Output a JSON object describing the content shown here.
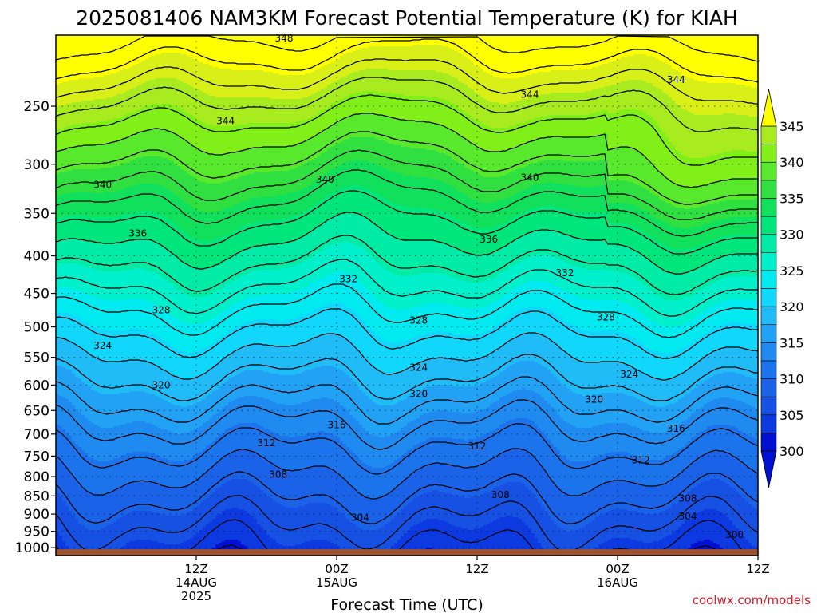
{
  "chart_data": {
    "type": "area",
    "title": "2025081406 NAM3KM Forecast Potential Temperature (K) for KIAH",
    "xlabel": "Forecast Time (UTC)",
    "ylabel": "",
    "credit": "coolwx.com/models",
    "x_range_hours": [
      -6,
      54
    ],
    "x_ticks": [
      {
        "hour": 6,
        "lines": [
          "12Z",
          "14AUG",
          "2025"
        ]
      },
      {
        "hour": 18,
        "lines": [
          "00Z",
          "15AUG"
        ]
      },
      {
        "hour": 30,
        "lines": [
          "12Z"
        ]
      },
      {
        "hour": 42,
        "lines": [
          "00Z",
          "16AUG"
        ]
      },
      {
        "hour": 54,
        "lines": [
          "12Z"
        ]
      }
    ],
    "y_axis": {
      "scale": "log-pressure",
      "range_hPa": [
        1025,
        200
      ],
      "ticks": [
        250,
        300,
        350,
        400,
        450,
        500,
        550,
        600,
        650,
        700,
        750,
        800,
        850,
        900,
        950,
        1000
      ]
    },
    "surface_pressure_hPa": 1005,
    "colorbar": {
      "ticks": [
        300,
        305,
        310,
        315,
        320,
        325,
        330,
        335,
        340,
        345
      ],
      "levels": [
        300,
        302.5,
        305,
        307.5,
        310,
        312.5,
        315,
        317.5,
        320,
        322.5,
        325,
        327.5,
        330,
        332.5,
        335,
        337.5,
        340,
        342.5,
        345,
        347.5
      ],
      "colors": [
        "#0010d0",
        "#0c3ae0",
        "#1651e4",
        "#1a62e8",
        "#1c74ec",
        "#1f8af0",
        "#22a2f4",
        "#1fbcf8",
        "#12d7fc",
        "#00eaf0",
        "#00f0cc",
        "#00eca6",
        "#00e67c",
        "#10e05c",
        "#30e040",
        "#58e82c",
        "#80f018",
        "#a8ec20",
        "#d8f018",
        "#ffff00"
      ]
    },
    "contour_interval_K": 2,
    "contour_labels": [
      {
        "value": 348,
        "hour": 13.5,
        "p": 202
      },
      {
        "value": 344,
        "hour": 8.5,
        "p": 262
      },
      {
        "value": 344,
        "hour": 34.5,
        "p": 241
      },
      {
        "value": 344,
        "hour": 47,
        "p": 230
      },
      {
        "value": 340,
        "hour": -2,
        "p": 320
      },
      {
        "value": 340,
        "hour": 17,
        "p": 315
      },
      {
        "value": 340,
        "hour": 34.5,
        "p": 313
      },
      {
        "value": 336,
        "hour": 1,
        "p": 373
      },
      {
        "value": 336,
        "hour": 31,
        "p": 380
      },
      {
        "value": 332,
        "hour": 19,
        "p": 430
      },
      {
        "value": 332,
        "hour": 37.5,
        "p": 422
      },
      {
        "value": 328,
        "hour": 3,
        "p": 474
      },
      {
        "value": 328,
        "hour": 25,
        "p": 490
      },
      {
        "value": 328,
        "hour": 41,
        "p": 485
      },
      {
        "value": 324,
        "hour": -2,
        "p": 530
      },
      {
        "value": 324,
        "hour": 25,
        "p": 568
      },
      {
        "value": 324,
        "hour": 43,
        "p": 580
      },
      {
        "value": 320,
        "hour": 3,
        "p": 600
      },
      {
        "value": 320,
        "hour": 25,
        "p": 617
      },
      {
        "value": 320,
        "hour": 40,
        "p": 628
      },
      {
        "value": 316,
        "hour": 18,
        "p": 680
      },
      {
        "value": 316,
        "hour": 47,
        "p": 688
      },
      {
        "value": 312,
        "hour": 12,
        "p": 720
      },
      {
        "value": 312,
        "hour": 30,
        "p": 727
      },
      {
        "value": 312,
        "hour": 44,
        "p": 760
      },
      {
        "value": 308,
        "hour": 13,
        "p": 795
      },
      {
        "value": 308,
        "hour": 32,
        "p": 847
      },
      {
        "value": 308,
        "hour": 48,
        "p": 857
      },
      {
        "value": 304,
        "hour": 20,
        "p": 910
      },
      {
        "value": 304,
        "hour": 48,
        "p": 906
      },
      {
        "value": 300,
        "hour": 52,
        "p": 960
      }
    ]
  }
}
